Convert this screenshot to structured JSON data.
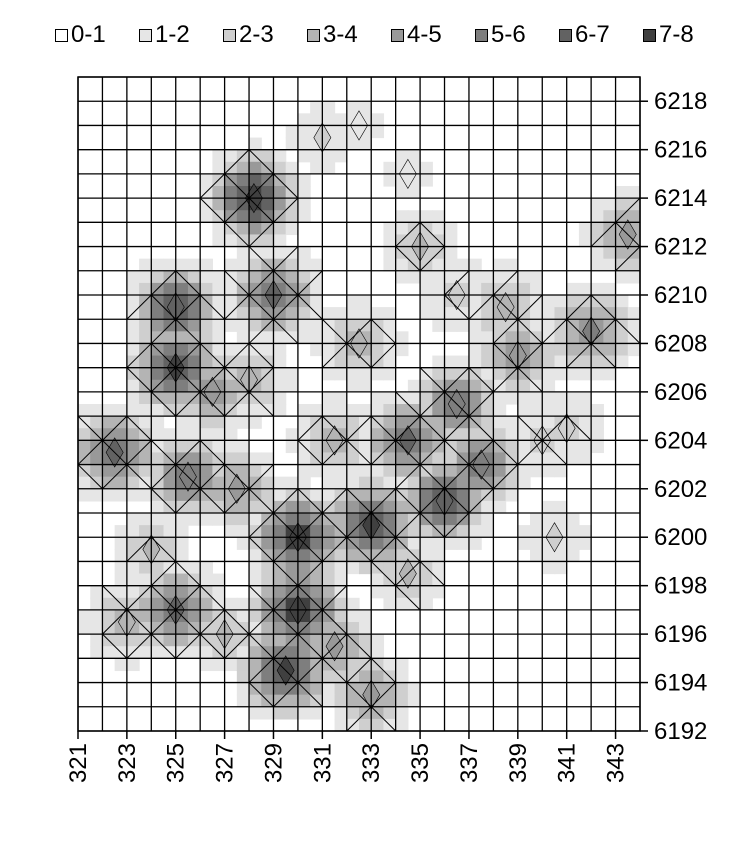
{
  "chart_data": {
    "type": "heatmap",
    "title": "",
    "xlabel": "",
    "ylabel": "",
    "x_ticks": [
      "321",
      "323",
      "325",
      "327",
      "329",
      "331",
      "333",
      "335",
      "337",
      "339",
      "341",
      "343"
    ],
    "y_ticks": [
      "6218",
      "6216",
      "6214",
      "6212",
      "6210",
      "6208",
      "6206",
      "6204",
      "6202",
      "6200",
      "6198",
      "6196",
      "6194",
      "6192"
    ],
    "xlim": [
      321,
      344
    ],
    "ylim": [
      6192,
      6219
    ],
    "grid": true,
    "legend_position": "top",
    "legend": [
      {
        "label": "0-1",
        "color": "#ffffff"
      },
      {
        "label": "1-2",
        "color": "#e6e6e6"
      },
      {
        "label": "2-3",
        "color": "#cfcfcf"
      },
      {
        "label": "3-4",
        "color": "#b4b4b4"
      },
      {
        "label": "4-5",
        "color": "#999999"
      },
      {
        "label": "5-6",
        "color": "#7e7e7e"
      },
      {
        "label": "6-7",
        "color": "#626262"
      },
      {
        "label": "7-8",
        "color": "#404040"
      }
    ],
    "hotspots": [
      {
        "x": 328.2,
        "y": 6214.0,
        "level": 7.5
      },
      {
        "x": 325.0,
        "y": 6207.0,
        "level": 7.0
      },
      {
        "x": 325.0,
        "y": 6209.5,
        "level": 6.5
      },
      {
        "x": 329.0,
        "y": 6210.0,
        "level": 6.0
      },
      {
        "x": 322.5,
        "y": 6203.5,
        "level": 6.0
      },
      {
        "x": 325.5,
        "y": 6202.5,
        "level": 5.5
      },
      {
        "x": 330.0,
        "y": 6200.0,
        "level": 7.5
      },
      {
        "x": 333.0,
        "y": 6200.5,
        "level": 7.0
      },
      {
        "x": 330.0,
        "y": 6197.0,
        "level": 7.5
      },
      {
        "x": 329.5,
        "y": 6194.5,
        "level": 7.0
      },
      {
        "x": 336.0,
        "y": 6201.5,
        "level": 6.5
      },
      {
        "x": 334.5,
        "y": 6204.0,
        "level": 6.0
      },
      {
        "x": 337.5,
        "y": 6203.0,
        "level": 5.5
      },
      {
        "x": 336.5,
        "y": 6205.5,
        "level": 5.5
      },
      {
        "x": 339.0,
        "y": 6207.5,
        "level": 4.5
      },
      {
        "x": 342.0,
        "y": 6208.5,
        "level": 5.0
      },
      {
        "x": 343.5,
        "y": 6212.5,
        "level": 4.0
      },
      {
        "x": 325.0,
        "y": 6197.0,
        "level": 6.0
      },
      {
        "x": 323.0,
        "y": 6196.5,
        "level": 3.5
      },
      {
        "x": 333.0,
        "y": 6193.5,
        "level": 4.0
      },
      {
        "x": 326.5,
        "y": 6206.0,
        "level": 4.5
      },
      {
        "x": 331.5,
        "y": 6204.0,
        "level": 3.5
      },
      {
        "x": 332.5,
        "y": 6208.0,
        "level": 3.5
      },
      {
        "x": 335.0,
        "y": 6212.0,
        "level": 3.0
      },
      {
        "x": 340.0,
        "y": 6204.0,
        "level": 2.5
      },
      {
        "x": 341.0,
        "y": 6204.5,
        "level": 2.5
      },
      {
        "x": 331.0,
        "y": 6216.5,
        "level": 2.0
      },
      {
        "x": 332.5,
        "y": 6217.0,
        "level": 1.5
      },
      {
        "x": 334.5,
        "y": 6215.0,
        "level": 1.5
      },
      {
        "x": 327.5,
        "y": 6202.0,
        "level": 4.0
      },
      {
        "x": 328.0,
        "y": 6206.5,
        "level": 3.5
      },
      {
        "x": 336.5,
        "y": 6210.0,
        "level": 2.5
      },
      {
        "x": 338.5,
        "y": 6209.5,
        "level": 3.5
      },
      {
        "x": 340.5,
        "y": 6200.0,
        "level": 2.0
      },
      {
        "x": 327.0,
        "y": 6196.0,
        "level": 3.0
      },
      {
        "x": 324.0,
        "y": 6199.5,
        "level": 3.0
      },
      {
        "x": 334.5,
        "y": 6198.5,
        "level": 3.0
      },
      {
        "x": 331.5,
        "y": 6195.5,
        "level": 4.0
      }
    ]
  }
}
